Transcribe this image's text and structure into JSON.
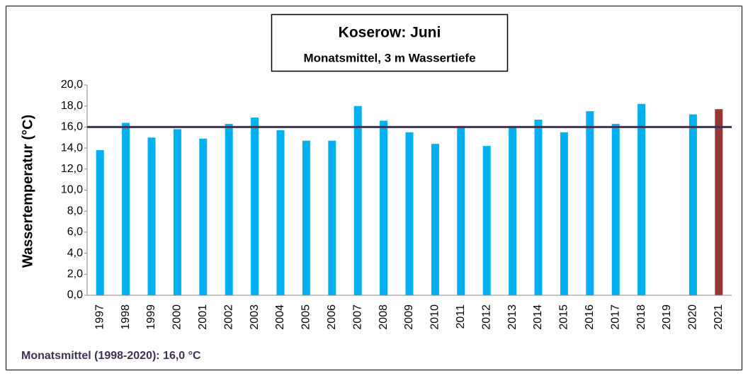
{
  "chart_data": {
    "type": "bar",
    "title": "Koserow: Juni",
    "subtitle": "Monatsmittel, 3 m Wassertiefe",
    "y_label": "Wassertemperatur (°C)",
    "annotation": "Monatsmittel (1998-2020): 16,0 °C",
    "categories": [
      "1997",
      "1998",
      "1999",
      "2000",
      "2001",
      "2002",
      "2003",
      "2004",
      "2005",
      "2006",
      "2007",
      "2008",
      "2009",
      "2010",
      "2011",
      "2012",
      "2013",
      "2014",
      "2015",
      "2016",
      "2017",
      "2018",
      "2019",
      "2020",
      "2021"
    ],
    "values": [
      13.8,
      16.4,
      15.0,
      15.8,
      14.9,
      16.3,
      16.9,
      15.7,
      14.7,
      14.7,
      18.0,
      16.6,
      15.5,
      14.4,
      16.1,
      14.2,
      16.1,
      16.7,
      15.5,
      17.5,
      16.3,
      18.2,
      null,
      17.2,
      17.7
    ],
    "colors": [
      "#00b0f0",
      "#00b0f0",
      "#00b0f0",
      "#00b0f0",
      "#00b0f0",
      "#00b0f0",
      "#00b0f0",
      "#00b0f0",
      "#00b0f0",
      "#00b0f0",
      "#00b0f0",
      "#00b0f0",
      "#00b0f0",
      "#00b0f0",
      "#00b0f0",
      "#00b0f0",
      "#00b0f0",
      "#00b0f0",
      "#00b0f0",
      "#00b0f0",
      "#00b0f0",
      "#00b0f0",
      "#00b0f0",
      "#00b0f0",
      "#953735"
    ],
    "mean_line": 16.0,
    "mean_line_color": "#403151",
    "ylim": [
      0,
      20
    ],
    "yticks": [
      {
        "value": 0,
        "label": "0,0"
      },
      {
        "value": 2,
        "label": "2,0"
      },
      {
        "value": 4,
        "label": "4,0"
      },
      {
        "value": 6,
        "label": "6,0"
      },
      {
        "value": 8,
        "label": "8,0"
      },
      {
        "value": 10,
        "label": "10,0"
      },
      {
        "value": 12,
        "label": "12,0"
      },
      {
        "value": 14,
        "label": "14,0"
      },
      {
        "value": 16,
        "label": "16,0"
      },
      {
        "value": 18,
        "label": "18,0"
      },
      {
        "value": 20,
        "label": "20,0"
      }
    ],
    "grid": false
  }
}
